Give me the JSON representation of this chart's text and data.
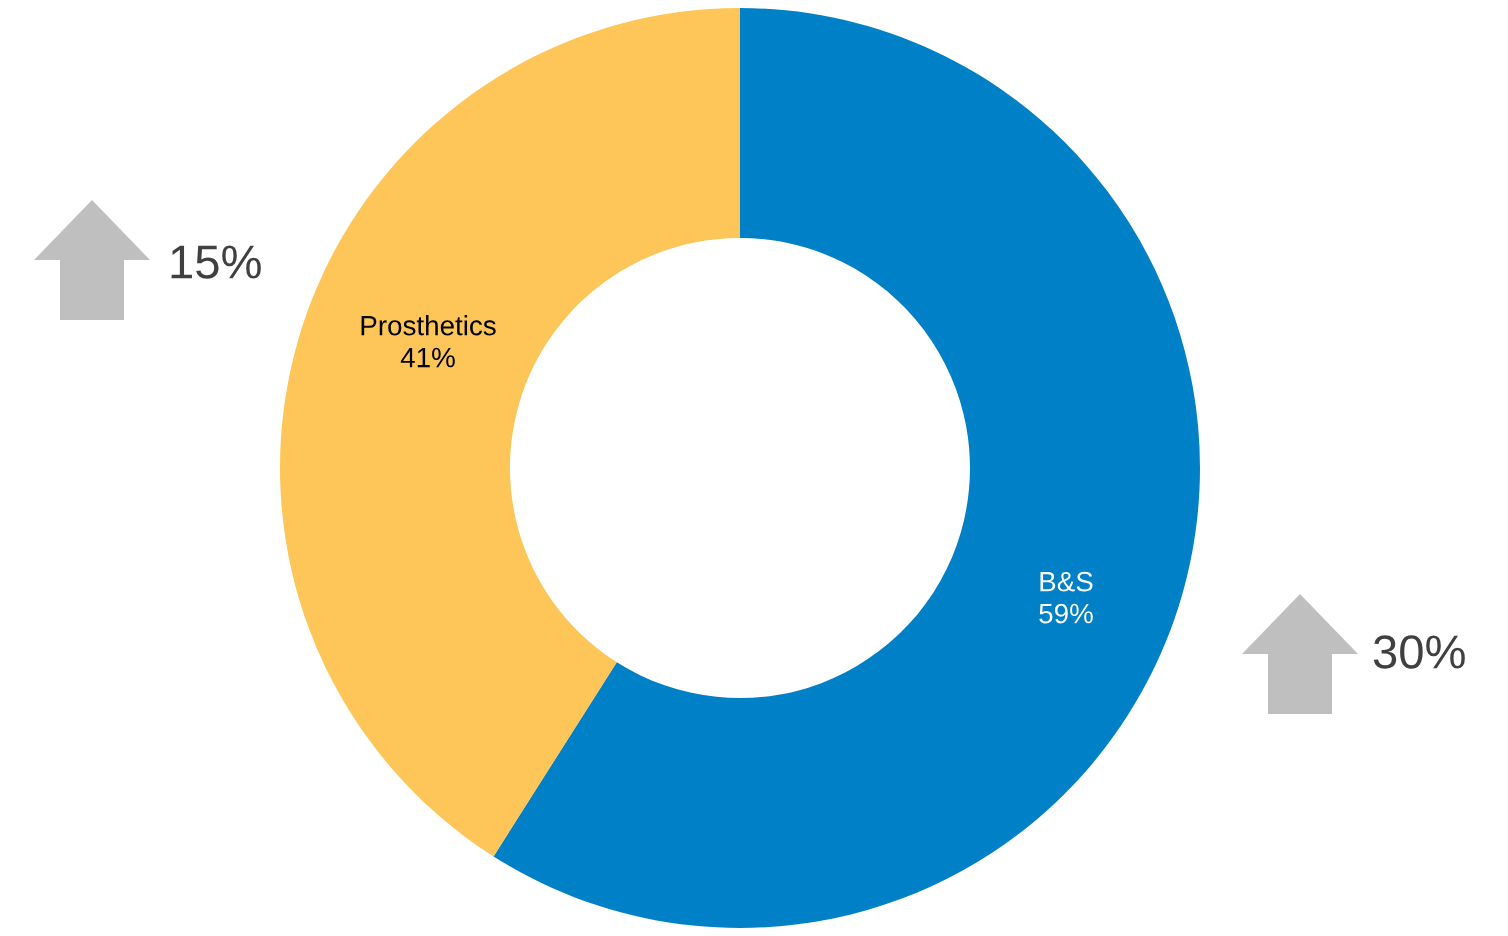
{
  "chart_data": {
    "type": "donut",
    "categories": [
      "B&S",
      "Prosthetics"
    ],
    "values": [
      59,
      41
    ],
    "colors": [
      "#0080c6",
      "#fec558"
    ],
    "value_labels": [
      "59%",
      "41%"
    ],
    "annotations": [
      "15%",
      "30%"
    ]
  }
}
